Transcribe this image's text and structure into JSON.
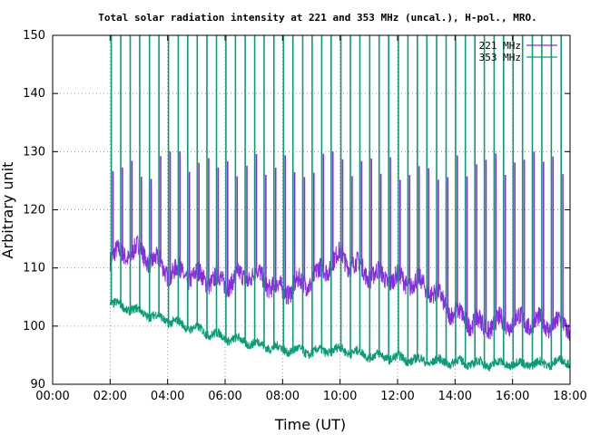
{
  "chart_data": {
    "type": "line",
    "title": "Total solar radiation intensity at 221 and 353 MHz (uncal.), H-pol., MRO.",
    "xlabel": "Time (UT)",
    "ylabel": "Arbitrary unit",
    "xlim": [
      "00:00",
      "18:00"
    ],
    "ylim": [
      90,
      150
    ],
    "x_ticks": [
      "00:00",
      "02:00",
      "04:00",
      "06:00",
      "08:00",
      "10:00",
      "12:00",
      "14:00",
      "16:00",
      "18:00"
    ],
    "y_ticks": [
      "90",
      "100",
      "110",
      "120",
      "130",
      "140",
      "150"
    ],
    "grid": "dotted",
    "legend_position": "top-right",
    "series": [
      {
        "name": "221 MHz",
        "color": "#8a2be2",
        "x": [
          "02:00",
          "03:00",
          "04:00",
          "05:00",
          "06:00",
          "07:00",
          "08:00",
          "09:00",
          "10:00",
          "11:00",
          "12:00",
          "13:00",
          "14:00",
          "15:00",
          "16:00",
          "17:00",
          "18:00"
        ],
        "values": [
          112,
          113,
          109.5,
          108.5,
          107.5,
          109,
          106,
          108,
          112,
          109,
          108,
          107,
          102,
          100,
          101,
          100.5,
          100
        ],
        "spike_peak": 130
      },
      {
        "name": "353 MHz",
        "color": "#0a9c78",
        "x": [
          "02:00",
          "03:00",
          "04:00",
          "05:00",
          "06:00",
          "07:00",
          "08:00",
          "09:00",
          "10:00",
          "11:00",
          "12:00",
          "13:00",
          "14:00",
          "15:00",
          "16:00",
          "17:00",
          "18:00"
        ],
        "values": [
          104,
          102.5,
          101,
          99.5,
          98,
          97,
          96,
          95.5,
          96,
          95,
          94.5,
          94,
          93.8,
          93.5,
          93.5,
          93.5,
          94
        ],
        "spike_peak": 150
      }
    ]
  }
}
